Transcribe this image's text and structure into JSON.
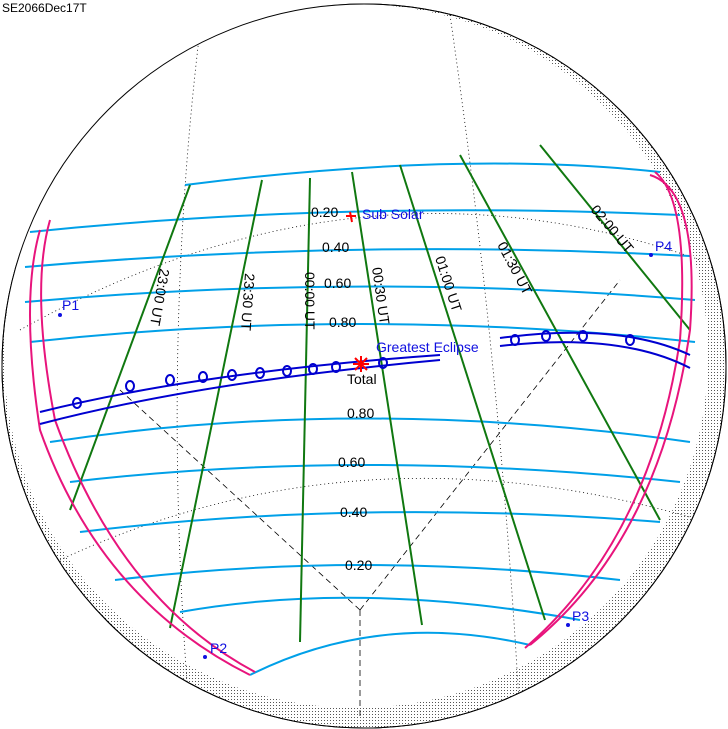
{
  "title": "SE2066Dec17T",
  "colors": {
    "magnitude": "#00a0e8",
    "time": "#107810",
    "path": "#0000d0",
    "limits": "#e8147c",
    "greatest": "#ff0000",
    "point_label": "#1010e0"
  },
  "magnitude_labels_north": [
    "0.20",
    "0.40",
    "0.60",
    "0.80"
  ],
  "magnitude_labels_south": [
    "0.80",
    "0.60",
    "0.40",
    "0.20"
  ],
  "time_labels": [
    "23:00 UT",
    "23:30 UT",
    "00:00 UT",
    "00:30 UT",
    "01:00 UT",
    "01:30 UT",
    "02:00 UT"
  ],
  "points": {
    "p1": "P1",
    "p2": "P2",
    "p3": "P3",
    "p4": "P4"
  },
  "sub_solar": "Sub Solar",
  "greatest_eclipse": "Greatest Eclipse",
  "total": "Total"
}
